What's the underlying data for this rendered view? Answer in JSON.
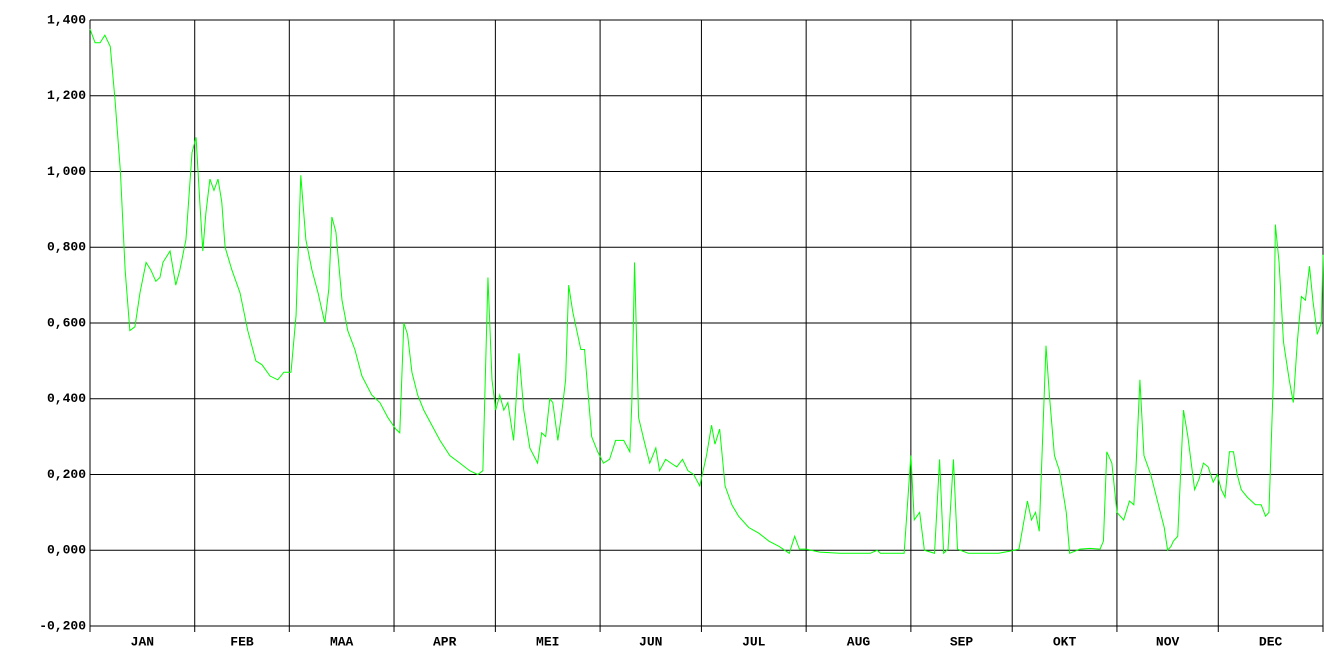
{
  "chart_data": {
    "type": "line",
    "categories": [
      "JAN",
      "FEB",
      "MAA",
      "APR",
      "MEI",
      "JUN",
      "JUL",
      "AUG",
      "SEP",
      "OKT",
      "NOV",
      "DEC"
    ],
    "xlim": [
      0,
      365
    ],
    "xticks": [
      0,
      31,
      59,
      90,
      120,
      151,
      181,
      212,
      243,
      273,
      304,
      334,
      365
    ],
    "ylim": [
      -0.2,
      1.4
    ],
    "yticks": [
      {
        "value": -0.2,
        "label": "-0,200"
      },
      {
        "value": 0,
        "label": "0,000"
      },
      {
        "value": 0.2,
        "label": "0,200"
      },
      {
        "value": 0.4,
        "label": "0,400"
      },
      {
        "value": 0.6,
        "label": "0,600"
      },
      {
        "value": 0.8,
        "label": "0,800"
      },
      {
        "value": 1.0,
        "label": "1,000"
      },
      {
        "value": 1.2,
        "label": "1,200"
      },
      {
        "value": 1.4,
        "label": "1,400"
      }
    ],
    "grid": true,
    "color": "#00ff00",
    "x": [
      0,
      1.5,
      3,
      4.4,
      6,
      7.4,
      9,
      10.4,
      11.8,
      13.3,
      14.8,
      16.6,
      18,
      19.5,
      20.7,
      21.6,
      23.7,
      25.4,
      26.6,
      28.4,
      30.2,
      31.4,
      32.5,
      33.4,
      34.3,
      35.5,
      36.7,
      37.9,
      39,
      40,
      42,
      44.4,
      46.7,
      49.1,
      50.9,
      53.3,
      55.6,
      57.4,
      59.5,
      61,
      62.4,
      63.9,
      65.7,
      67.5,
      69.5,
      70.7,
      71.6,
      72.8,
      74.6,
      76.3,
      78.4,
      80.5,
      83.4,
      85.8,
      88.2,
      90.5,
      91.7,
      92.9,
      94,
      95.3,
      97,
      98.8,
      101.2,
      103.6,
      106.5,
      109.5,
      112.4,
      114.8,
      116.3,
      117.8,
      119,
      120.1,
      121.3,
      122.5,
      123.7,
      125.4,
      127,
      128.4,
      130.2,
      132.5,
      133.7,
      134.9,
      136.1,
      137,
      138.5,
      139.6,
      140.8,
      141.7,
      142.9,
      144.1,
      145.3,
      146.4,
      148.5,
      150.3,
      152,
      153.8,
      155.6,
      158,
      159.8,
      160.4,
      161.2,
      162.4,
      164,
      165.7,
      167.5,
      168.6,
      170.4,
      172,
      173.7,
      175.4,
      177,
      178.7,
      180.5,
      182.5,
      184,
      185,
      186.4,
      188,
      190,
      192,
      195,
      198,
      201,
      204,
      207,
      208.6,
      210,
      212,
      216,
      222,
      231,
      233,
      234,
      241,
      243,
      244,
      245.6,
      247,
      250,
      251.5,
      252.7,
      254,
      255.6,
      256.8,
      260,
      269,
      272,
      275,
      277.5,
      278.7,
      279.9,
      281,
      283,
      284,
      285.5,
      287,
      289,
      290,
      293,
      296,
      299,
      300,
      301,
      302.5,
      304,
      306,
      307.7,
      309,
      309.6,
      310.8,
      312,
      314,
      316,
      318,
      319,
      320,
      320.7,
      322,
      323.7,
      325,
      326,
      327,
      328.4,
      329.6,
      331,
      332.5,
      333.7,
      334.9,
      336,
      337.3,
      338.5,
      339.6,
      340.8,
      342.6,
      345,
      346.7,
      348,
      349,
      350.3,
      350.9,
      352,
      353.3,
      355,
      356.2,
      357.4,
      358.6,
      359.8,
      361,
      362,
      363.3,
      364.5,
      365
    ],
    "values": [
      1.376,
      1.34,
      1.34,
      1.36,
      1.33,
      1.19,
      1.0,
      0.74,
      0.58,
      0.59,
      0.68,
      0.76,
      0.74,
      0.71,
      0.72,
      0.76,
      0.79,
      0.7,
      0.74,
      0.82,
      1.05,
      1.09,
      0.92,
      0.79,
      0.89,
      0.98,
      0.95,
      0.98,
      0.92,
      0.8,
      0.74,
      0.68,
      0.58,
      0.5,
      0.49,
      0.46,
      0.45,
      0.47,
      0.47,
      0.62,
      0.99,
      0.82,
      0.74,
      0.68,
      0.6,
      0.69,
      0.88,
      0.84,
      0.66,
      0.58,
      0.53,
      0.46,
      0.41,
      0.39,
      0.35,
      0.32,
      0.31,
      0.6,
      0.57,
      0.47,
      0.41,
      0.37,
      0.33,
      0.29,
      0.25,
      0.23,
      0.21,
      0.2,
      0.21,
      0.72,
      0.45,
      0.37,
      0.41,
      0.37,
      0.39,
      0.29,
      0.52,
      0.37,
      0.27,
      0.23,
      0.31,
      0.3,
      0.4,
      0.39,
      0.29,
      0.36,
      0.45,
      0.7,
      0.63,
      0.58,
      0.53,
      0.53,
      0.3,
      0.26,
      0.23,
      0.24,
      0.29,
      0.29,
      0.26,
      0.39,
      0.76,
      0.35,
      0.29,
      0.23,
      0.27,
      0.21,
      0.24,
      0.23,
      0.22,
      0.24,
      0.21,
      0.2,
      0.17,
      0.25,
      0.33,
      0.28,
      0.32,
      0.17,
      0.12,
      0.09,
      0.06,
      0.045,
      0.024,
      0.01,
      -0.008,
      0.037,
      0.003,
      0.003,
      -0.005,
      -0.008,
      -0.008,
      0,
      -0.008,
      -0.008,
      0.25,
      0.08,
      0.1,
      0,
      -0.008,
      0.24,
      -0.008,
      0.003,
      0.24,
      0.003,
      -0.008,
      -0.008,
      -0.003,
      0.003,
      0.13,
      0.08,
      0.1,
      0.05,
      0.54,
      0.41,
      0.25,
      0.21,
      0.1,
      -0.008,
      0.003,
      0.005,
      0.003,
      0.024,
      0.26,
      0.23,
      0.1,
      0.08,
      0.13,
      0.12,
      0.21,
      0.45,
      0.25,
      0.2,
      0.13,
      0.06,
      0,
      0.01,
      0.024,
      0.037,
      0.37,
      0.3,
      0.23,
      0.16,
      0.19,
      0.23,
      0.22,
      0.18,
      0.2,
      0.16,
      0.14,
      0.26,
      0.26,
      0.2,
      0.16,
      0.14,
      0.12,
      0.12,
      0.09,
      0.1,
      0.45,
      0.86,
      0.76,
      0.55,
      0.45,
      0.39,
      0.55,
      0.67,
      0.66,
      0.75,
      0.66,
      0.57,
      0.6,
      0.78
    ]
  }
}
